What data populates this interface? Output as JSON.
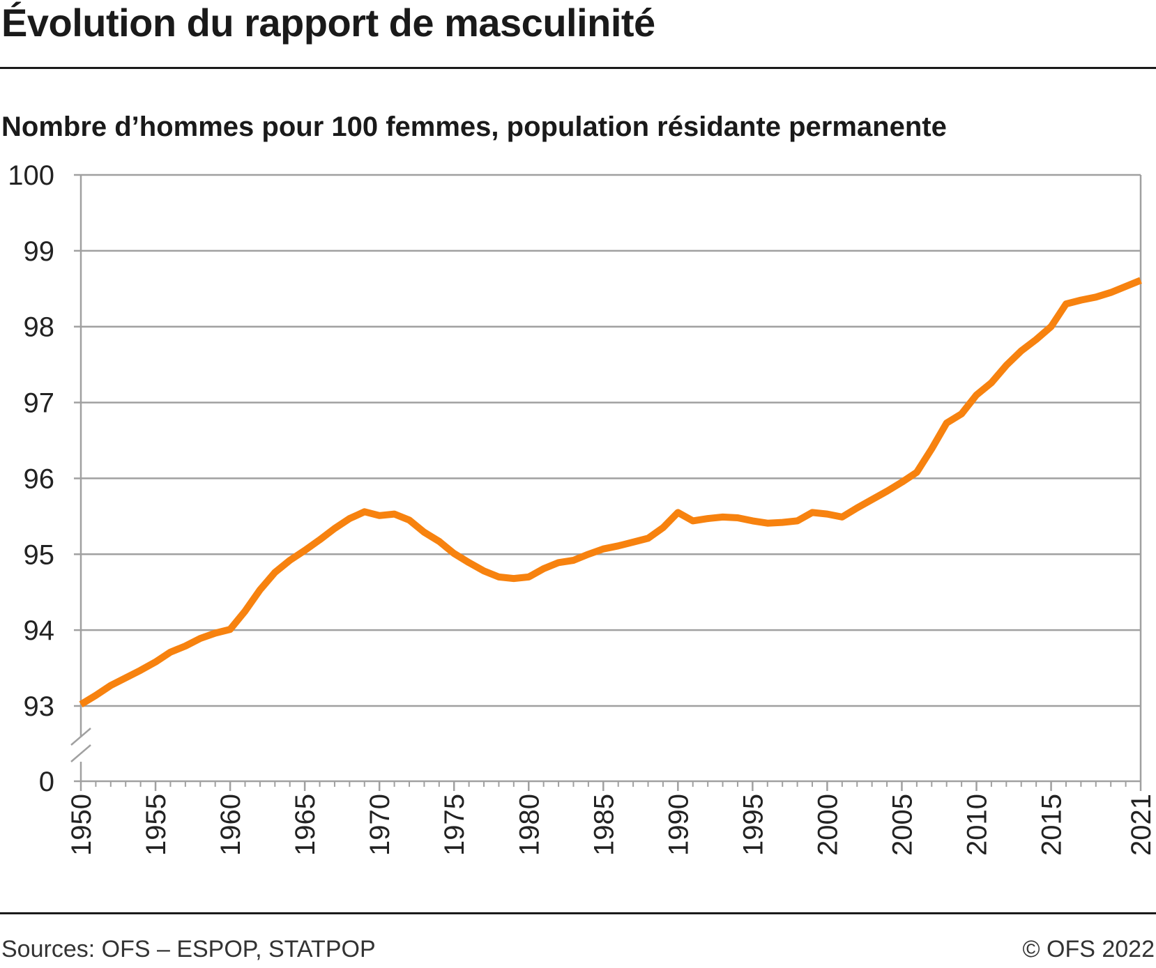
{
  "title": "Évolution du rapport de masculinité",
  "subtitle": "Nombre d’hommes pour 100 femmes, population résidante permanente",
  "footer": {
    "source": "Sources: OFS – ESPOP, STATPOP",
    "copyright": "© OFS 2022"
  },
  "colors": {
    "line": "#f7820f",
    "grid": "#a0a0a0",
    "text": "#1a1a1a"
  },
  "chart_data": {
    "type": "line",
    "title": "Évolution du rapport de masculinité",
    "subtitle": "Nombre d’hommes pour 100 femmes, population résidante permanente",
    "xlabel": "",
    "ylabel": "",
    "xlim": [
      1950,
      2021
    ],
    "ylim": [
      93,
      100
    ],
    "y_axis_break": true,
    "y_ticks": [
      "0",
      "93",
      "94",
      "95",
      "96",
      "97",
      "98",
      "99",
      "100"
    ],
    "x_ticks": [
      "1950",
      "1955",
      "1960",
      "1965",
      "1970",
      "1975",
      "1980",
      "1985",
      "1990",
      "1995",
      "2000",
      "2005",
      "2010",
      "2015",
      "2021"
    ],
    "grid": true,
    "x": [
      1950,
      1951,
      1952,
      1953,
      1954,
      1955,
      1956,
      1957,
      1958,
      1959,
      1960,
      1961,
      1962,
      1963,
      1964,
      1965,
      1966,
      1967,
      1968,
      1969,
      1970,
      1971,
      1972,
      1973,
      1974,
      1975,
      1976,
      1977,
      1978,
      1979,
      1980,
      1981,
      1982,
      1983,
      1984,
      1985,
      1986,
      1987,
      1988,
      1989,
      1990,
      1991,
      1992,
      1993,
      1994,
      1995,
      1996,
      1997,
      1998,
      1999,
      2000,
      2001,
      2002,
      2003,
      2004,
      2005,
      2006,
      2007,
      2008,
      2009,
      2010,
      2011,
      2012,
      2013,
      2014,
      2015,
      2016,
      2017,
      2018,
      2019,
      2020,
      2021
    ],
    "series": [
      {
        "values": [
          93.02,
          93.14,
          93.27,
          93.37,
          93.47,
          93.58,
          93.71,
          93.79,
          93.89,
          93.96,
          94.01,
          94.25,
          94.53,
          94.76,
          94.92,
          95.05,
          95.19,
          95.34,
          95.47,
          95.56,
          95.51,
          95.53,
          95.45,
          95.29,
          95.17,
          95.01,
          94.89,
          94.78,
          94.7,
          94.68,
          94.7,
          94.81,
          94.89,
          94.92,
          95.0,
          95.07,
          95.11,
          95.16,
          95.21,
          95.35,
          95.55,
          95.44,
          95.47,
          95.49,
          95.48,
          95.44,
          95.41,
          95.42,
          95.44,
          95.55,
          95.53,
          95.49,
          95.61,
          95.72,
          95.83,
          95.95,
          96.08,
          96.39,
          96.73,
          96.85,
          97.1,
          97.26,
          97.49,
          97.68,
          97.83,
          98.0,
          98.3,
          98.35,
          98.39,
          98.45,
          98.53,
          98.61
        ]
      }
    ]
  }
}
